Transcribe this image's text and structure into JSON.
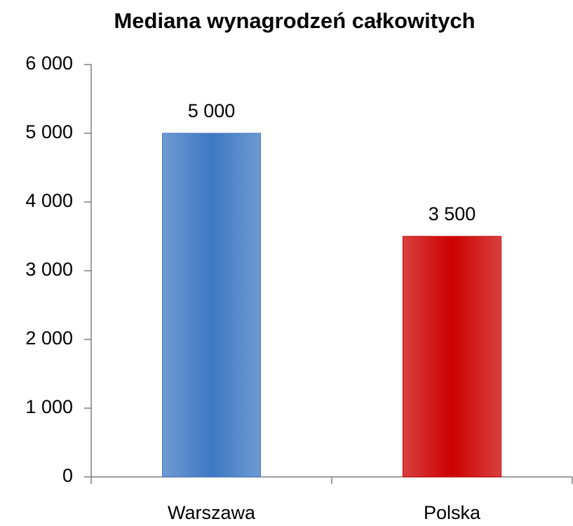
{
  "chart_data": {
    "type": "bar",
    "title": "Mediana wynagrodzeń całkowitych",
    "categories": [
      "Warszawa",
      "Polska"
    ],
    "values": [
      5000,
      3500
    ],
    "value_labels": [
      "5 000",
      "3 500"
    ],
    "colors": [
      "#3e78c4",
      "#cc0000"
    ],
    "ylim": [
      0,
      6000
    ],
    "yticks": [
      0,
      {
        "value": 1000,
        "label": "1 000"
      },
      {
        "value": 2000,
        "label": "2 000"
      },
      {
        "value": 3000,
        "label": "3 000"
      },
      {
        "value": 4000,
        "label": "4 000"
      },
      {
        "value": 5000,
        "label": "5 000"
      },
      {
        "value": 6000,
        "label": "6 000"
      }
    ],
    "grid": false
  }
}
